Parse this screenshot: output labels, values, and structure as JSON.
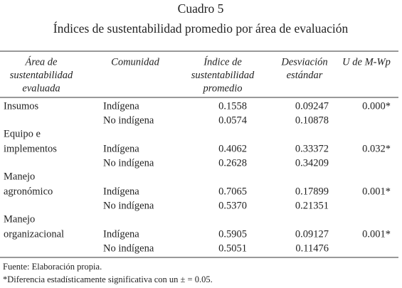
{
  "header": {
    "title": "Cuadro 5",
    "subtitle": "Índices de sustentabilidad promedio por área de evaluación"
  },
  "table": {
    "columns": [
      [
        "Área de",
        "sustentabilidad",
        "evaluada"
      ],
      [
        "Comunidad"
      ],
      [
        "Índice de",
        "sustentabilidad",
        "promedio"
      ],
      [
        "Desviación",
        "estándar"
      ],
      [
        "U de M-Wp"
      ]
    ],
    "groups": [
      {
        "area": [
          "Insumos"
        ],
        "u": "0.000*",
        "rows": [
          {
            "comunidad": "Indígena",
            "indice": "0.1558",
            "desviacion": "0.09247"
          },
          {
            "comunidad": "No indígena",
            "indice": "0.0574",
            "desviacion": "0.10878"
          }
        ]
      },
      {
        "area": [
          "Equipo e",
          "implementos"
        ],
        "u": "0.032*",
        "rows": [
          {
            "comunidad": "Indígena",
            "indice": "0.4062",
            "desviacion": "0.33372"
          },
          {
            "comunidad": "No indígena",
            "indice": "0.2628",
            "desviacion": "0.34209"
          }
        ]
      },
      {
        "area": [
          "Manejo",
          "agronómico"
        ],
        "u": "0.001*",
        "rows": [
          {
            "comunidad": "Indígena",
            "indice": "0.7065",
            "desviacion": "0.17899"
          },
          {
            "comunidad": "No indígena",
            "indice": "0.5370",
            "desviacion": "0.21351"
          }
        ]
      },
      {
        "area": [
          "Manejo",
          "organizacional"
        ],
        "u": "0.001*",
        "rows": [
          {
            "comunidad": "Indígena",
            "indice": "0.5905",
            "desviacion": "0.09127"
          },
          {
            "comunidad": "No indígena",
            "indice": "0.5051",
            "desviacion": "0.11476"
          }
        ]
      }
    ]
  },
  "footnotes": [
    "Fuente: Elaboración propia.",
    "*Diferencia estadísticamente significativa con un ± = 0.05."
  ]
}
